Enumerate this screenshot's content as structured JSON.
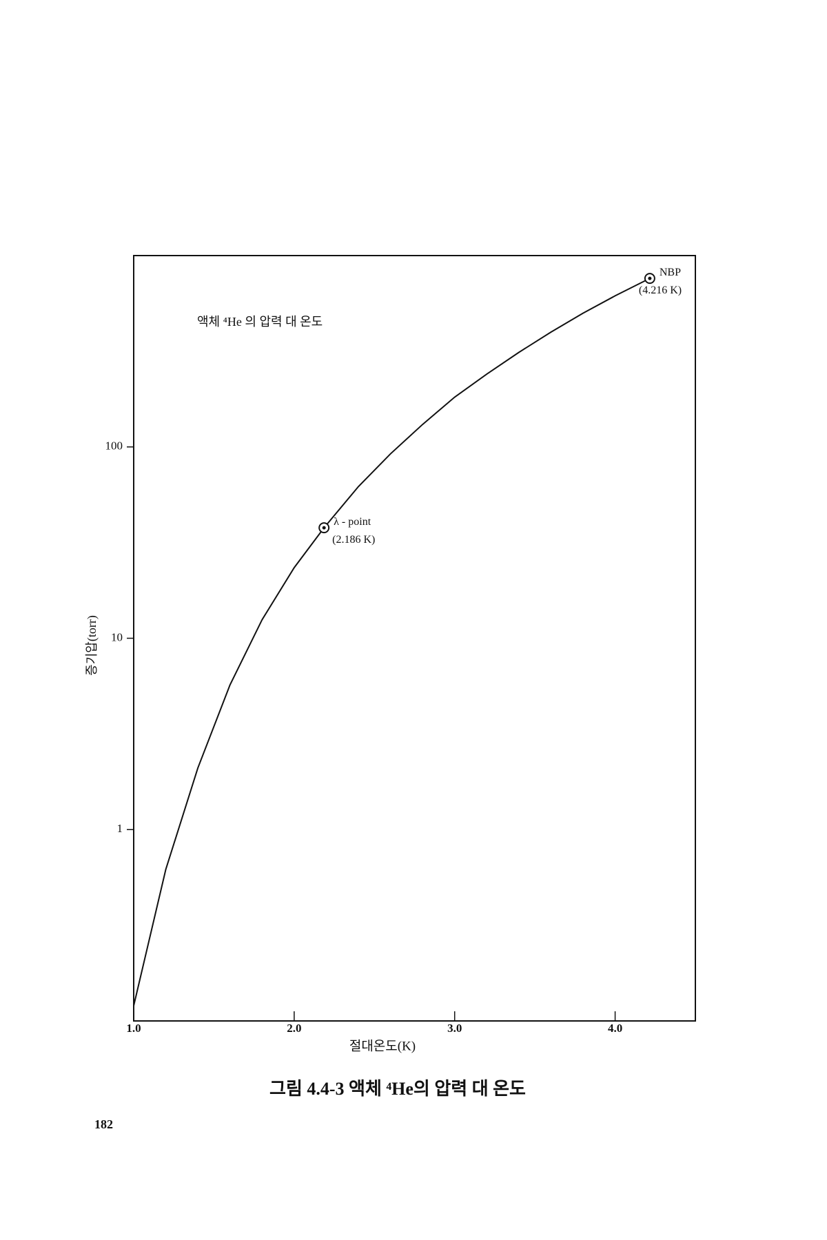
{
  "chart_data": {
    "type": "line",
    "title": "액체 ⁴He 의 압력 대 온도",
    "caption": "그림 4.4-3 액체 ⁴He의 압력 대 온도",
    "x_label": "절대온도(K)",
    "y_label": "증기압(torr)",
    "page_number": "182",
    "ylog": true,
    "xlim": [
      1.0,
      4.5
    ],
    "ylim": [
      0.1,
      1000
    ],
    "xticks": [
      {
        "value": 1,
        "label": "1.0"
      },
      {
        "value": 2,
        "label": "2.0"
      },
      {
        "value": 3,
        "label": "3.0"
      },
      {
        "value": 4,
        "label": "4.0"
      }
    ],
    "yticks": [
      1,
      10,
      100
    ],
    "series": [
      {
        "color": "#111111",
        "x": [
          1.0,
          1.2,
          1.4,
          1.6,
          1.8,
          2.0,
          2.186,
          2.4,
          2.6,
          2.8,
          3.0,
          3.2,
          3.4,
          3.6,
          3.8,
          4.0,
          4.216
        ],
        "values": [
          0.12,
          0.62,
          2.1,
          5.7,
          12.5,
          23.4,
          37.8,
          62,
          92,
          131,
          182,
          240,
          312,
          398,
          500,
          616,
          760
        ]
      }
    ],
    "markers": [
      {
        "x": 2.186,
        "y": 37.8,
        "label": "λ - point",
        "sublabel": "(2.186 K)"
      },
      {
        "x": 4.216,
        "y": 760,
        "label": "NBP",
        "sublabel": "(4.216 K)"
      }
    ]
  }
}
